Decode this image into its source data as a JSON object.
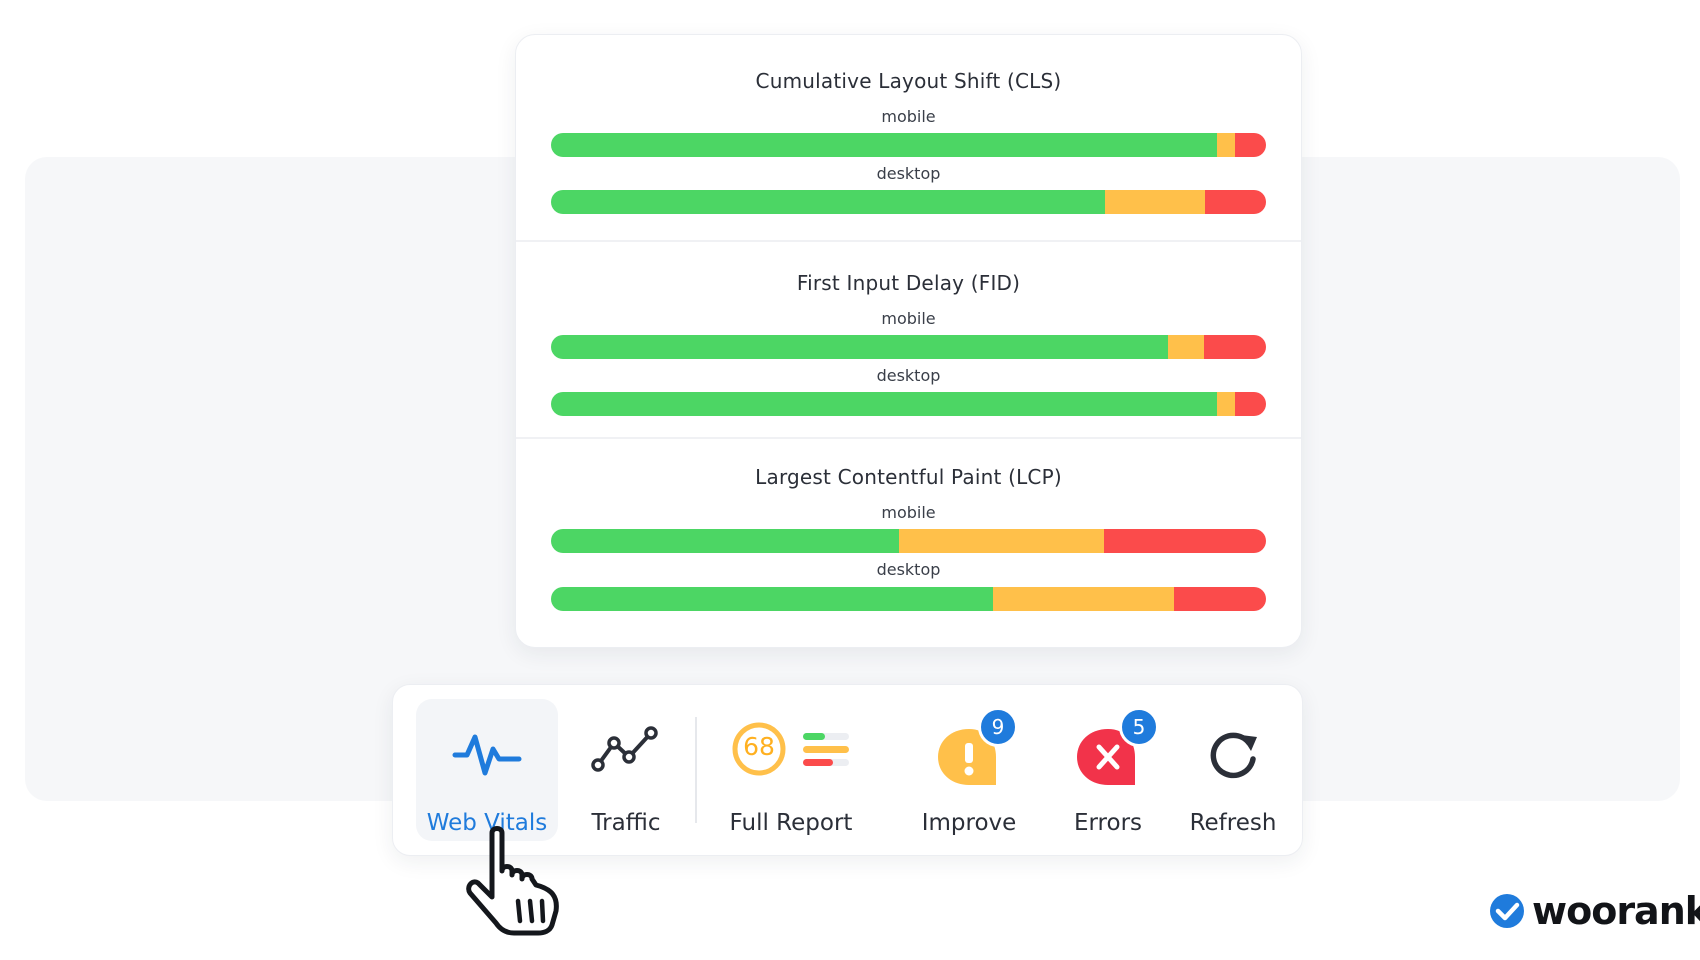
{
  "metrics": [
    {
      "title": "Cumulative Layout Shift (CLS)",
      "rows": [
        {
          "label": "mobile",
          "good": 93.2,
          "average": 2.4,
          "poor": 4.4
        },
        {
          "label": "desktop",
          "good": 77.5,
          "average": 13.9,
          "poor": 8.6
        }
      ]
    },
    {
      "title": "First Input Delay (FID)",
      "rows": [
        {
          "label": "mobile",
          "good": 86.3,
          "average": 5.0,
          "poor": 8.7
        },
        {
          "label": "desktop",
          "good": 93.2,
          "average": 2.4,
          "poor": 4.4
        }
      ]
    },
    {
      "title": "Largest Contentful Paint (LCP)",
      "rows": [
        {
          "label": "mobile",
          "good": 48.7,
          "average": 28.6,
          "poor": 22.7
        },
        {
          "label": "desktop",
          "good": 61.8,
          "average": 25.3,
          "poor": 12.9
        }
      ]
    }
  ],
  "colors": {
    "good": "#4cd664",
    "average": "#ffc04a",
    "poor": "#fb4b4b",
    "accent": "#1f7bdc"
  },
  "toolbar": {
    "web_vitals": {
      "label": "Web Vitals",
      "icon": "pulse-icon",
      "active": true
    },
    "traffic": {
      "label": "Traffic",
      "icon": "trend-line-icon"
    },
    "full_report": {
      "label": "Full Report",
      "score": "68",
      "icon": "score-ring-icon"
    },
    "improve": {
      "label": "Improve",
      "count": "9",
      "icon": "exclamation-icon"
    },
    "errors": {
      "label": "Errors",
      "count": "5",
      "icon": "error-x-icon"
    },
    "refresh": {
      "label": "Refresh",
      "icon": "refresh-icon"
    }
  },
  "brand": {
    "name": "woorank",
    "icon": "check-badge-icon"
  }
}
